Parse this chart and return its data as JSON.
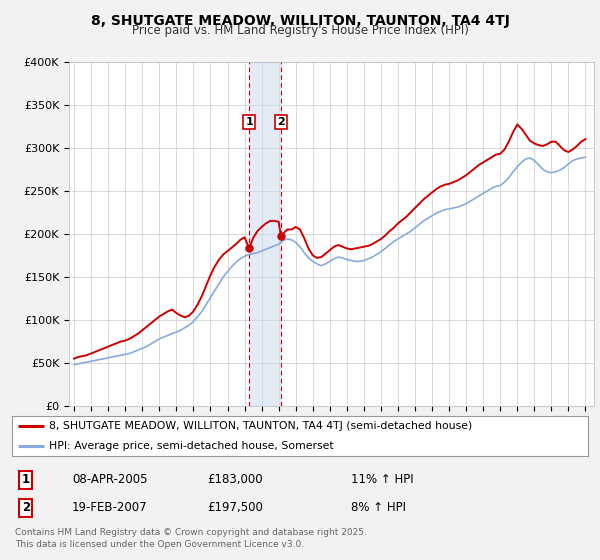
{
  "title": "8, SHUTGATE MEADOW, WILLITON, TAUNTON, TA4 4TJ",
  "subtitle": "Price paid vs. HM Land Registry's House Price Index (HPI)",
  "ylim": [
    0,
    400000
  ],
  "xlim_start": 1994.7,
  "xlim_end": 2025.5,
  "yticks": [
    0,
    50000,
    100000,
    150000,
    200000,
    250000,
    300000,
    350000,
    400000
  ],
  "ytick_labels": [
    "£0",
    "£50K",
    "£100K",
    "£150K",
    "£200K",
    "£250K",
    "£300K",
    "£350K",
    "£400K"
  ],
  "background_color": "#f2f2f2",
  "plot_background": "#ffffff",
  "grid_color": "#cccccc",
  "red_line_color": "#cc0000",
  "blue_line_color": "#88aadd",
  "marker1_x": 2005.27,
  "marker1_y": 183000,
  "marker2_x": 2007.13,
  "marker2_y": 197500,
  "marker_color": "#cc0000",
  "shade_color": "#c8d8f0",
  "legend_label_red": "8, SHUTGATE MEADOW, WILLITON, TAUNTON, TA4 4TJ (semi-detached house)",
  "legend_label_blue": "HPI: Average price, semi-detached house, Somerset",
  "table_row1": [
    "1",
    "08-APR-2005",
    "£183,000",
    "11% ↑ HPI"
  ],
  "table_row2": [
    "2",
    "19-FEB-2007",
    "£197,500",
    "8% ↑ HPI"
  ],
  "footer": "Contains HM Land Registry data © Crown copyright and database right 2025.\nThis data is licensed under the Open Government Licence v3.0.",
  "hpi_years": [
    1995.0,
    1995.25,
    1995.5,
    1995.75,
    1996.0,
    1996.25,
    1996.5,
    1996.75,
    1997.0,
    1997.25,
    1997.5,
    1997.75,
    1998.0,
    1998.25,
    1998.5,
    1998.75,
    1999.0,
    1999.25,
    1999.5,
    1999.75,
    2000.0,
    2000.25,
    2000.5,
    2000.75,
    2001.0,
    2001.25,
    2001.5,
    2001.75,
    2002.0,
    2002.25,
    2002.5,
    2002.75,
    2003.0,
    2003.25,
    2003.5,
    2003.75,
    2004.0,
    2004.25,
    2004.5,
    2004.75,
    2005.0,
    2005.25,
    2005.5,
    2005.75,
    2006.0,
    2006.25,
    2006.5,
    2006.75,
    2007.0,
    2007.25,
    2007.5,
    2007.75,
    2008.0,
    2008.25,
    2008.5,
    2008.75,
    2009.0,
    2009.25,
    2009.5,
    2009.75,
    2010.0,
    2010.25,
    2010.5,
    2010.75,
    2011.0,
    2011.25,
    2011.5,
    2011.75,
    2012.0,
    2012.25,
    2012.5,
    2012.75,
    2013.0,
    2013.25,
    2013.5,
    2013.75,
    2014.0,
    2014.25,
    2014.5,
    2014.75,
    2015.0,
    2015.25,
    2015.5,
    2015.75,
    2016.0,
    2016.25,
    2016.5,
    2016.75,
    2017.0,
    2017.25,
    2017.5,
    2017.75,
    2018.0,
    2018.25,
    2018.5,
    2018.75,
    2019.0,
    2019.25,
    2019.5,
    2019.75,
    2020.0,
    2020.25,
    2020.5,
    2020.75,
    2021.0,
    2021.25,
    2021.5,
    2021.75,
    2022.0,
    2022.25,
    2022.5,
    2022.75,
    2023.0,
    2023.25,
    2023.5,
    2023.75,
    2024.0,
    2024.25,
    2024.5,
    2024.75,
    2025.0
  ],
  "hpi_values": [
    48000,
    49000,
    50000,
    51000,
    52000,
    53000,
    54000,
    55000,
    56000,
    57000,
    58000,
    59000,
    60000,
    61000,
    63000,
    65000,
    67000,
    69000,
    72000,
    75000,
    78000,
    80000,
    82000,
    84000,
    86000,
    88000,
    91000,
    94000,
    98000,
    104000,
    110000,
    118000,
    126000,
    134000,
    142000,
    150000,
    156000,
    162000,
    167000,
    171000,
    174000,
    176000,
    177000,
    178000,
    180000,
    182000,
    184000,
    186000,
    188000,
    192000,
    194000,
    193000,
    190000,
    185000,
    178000,
    172000,
    168000,
    165000,
    163000,
    165000,
    168000,
    171000,
    173000,
    172000,
    170000,
    169000,
    168000,
    168000,
    169000,
    171000,
    173000,
    176000,
    179000,
    183000,
    187000,
    191000,
    194000,
    197000,
    200000,
    203000,
    207000,
    211000,
    215000,
    218000,
    221000,
    224000,
    226000,
    228000,
    229000,
    230000,
    231000,
    233000,
    235000,
    238000,
    241000,
    244000,
    247000,
    250000,
    253000,
    255000,
    256000,
    260000,
    265000,
    272000,
    278000,
    283000,
    287000,
    288000,
    285000,
    280000,
    275000,
    272000,
    271000,
    272000,
    274000,
    277000,
    281000,
    285000,
    287000,
    288000,
    289000
  ],
  "red_years": [
    1995.0,
    1995.25,
    1995.5,
    1995.75,
    1996.0,
    1996.25,
    1996.5,
    1996.75,
    1997.0,
    1997.25,
    1997.5,
    1997.75,
    1998.0,
    1998.25,
    1998.5,
    1998.75,
    1999.0,
    1999.25,
    1999.5,
    1999.75,
    2000.0,
    2000.25,
    2000.5,
    2000.75,
    2001.0,
    2001.25,
    2001.5,
    2001.75,
    2002.0,
    2002.25,
    2002.5,
    2002.75,
    2003.0,
    2003.25,
    2003.5,
    2003.75,
    2004.0,
    2004.25,
    2004.5,
    2004.75,
    2005.0,
    2005.27,
    2005.5,
    2005.75,
    2006.0,
    2006.25,
    2006.5,
    2006.75,
    2007.0,
    2007.13,
    2007.5,
    2007.75,
    2008.0,
    2008.25,
    2008.5,
    2008.75,
    2009.0,
    2009.25,
    2009.5,
    2009.75,
    2010.0,
    2010.25,
    2010.5,
    2010.75,
    2011.0,
    2011.25,
    2011.5,
    2011.75,
    2012.0,
    2012.25,
    2012.5,
    2012.75,
    2013.0,
    2013.25,
    2013.5,
    2013.75,
    2014.0,
    2014.25,
    2014.5,
    2014.75,
    2015.0,
    2015.25,
    2015.5,
    2015.75,
    2016.0,
    2016.25,
    2016.5,
    2016.75,
    2017.0,
    2017.25,
    2017.5,
    2017.75,
    2018.0,
    2018.25,
    2018.5,
    2018.75,
    2019.0,
    2019.25,
    2019.5,
    2019.75,
    2020.0,
    2020.25,
    2020.5,
    2020.75,
    2021.0,
    2021.25,
    2021.5,
    2021.75,
    2022.0,
    2022.25,
    2022.5,
    2022.75,
    2023.0,
    2023.25,
    2023.5,
    2023.75,
    2024.0,
    2024.25,
    2024.5,
    2024.75,
    2025.0
  ],
  "red_values": [
    55000,
    57000,
    58000,
    59000,
    61000,
    63000,
    65000,
    67000,
    69000,
    71000,
    73000,
    75000,
    76000,
    78000,
    81000,
    84000,
    88000,
    92000,
    96000,
    100000,
    104000,
    107000,
    110000,
    112000,
    108000,
    105000,
    103000,
    105000,
    110000,
    118000,
    128000,
    140000,
    152000,
    162000,
    170000,
    176000,
    180000,
    184000,
    188000,
    193000,
    196000,
    183000,
    195000,
    203000,
    208000,
    212000,
    215000,
    215000,
    214000,
    197500,
    205000,
    205000,
    208000,
    205000,
    195000,
    183000,
    175000,
    172000,
    173000,
    177000,
    181000,
    185000,
    187000,
    185000,
    183000,
    182000,
    183000,
    184000,
    185000,
    186000,
    188000,
    191000,
    194000,
    198000,
    203000,
    207000,
    212000,
    216000,
    220000,
    225000,
    230000,
    235000,
    240000,
    244000,
    248000,
    252000,
    255000,
    257000,
    258000,
    260000,
    262000,
    265000,
    268000,
    272000,
    276000,
    280000,
    283000,
    286000,
    289000,
    292000,
    293000,
    298000,
    307000,
    318000,
    327000,
    322000,
    315000,
    308000,
    305000,
    303000,
    302000,
    304000,
    307000,
    307000,
    302000,
    297000,
    295000,
    298000,
    302000,
    307000,
    310000
  ]
}
